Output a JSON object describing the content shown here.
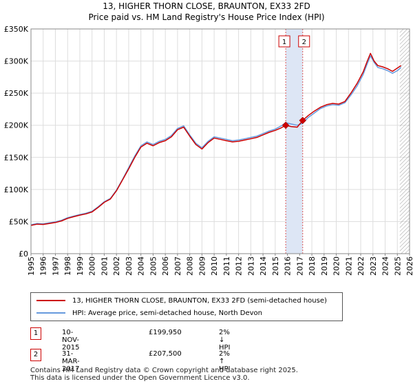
{
  "title_line1": "13, HIGHER THORN CLOSE, BRAUNTON, EX33 2FD",
  "title_line2": "Price paid vs. HM Land Registry's House Price Index (HPI)",
  "chart_data": {
    "type": "line",
    "xlim": [
      1995,
      2026
    ],
    "ylim": [
      0,
      350000
    ],
    "yticks": [
      0,
      50000,
      100000,
      150000,
      200000,
      250000,
      300000,
      350000
    ],
    "ytick_labels": [
      "£0",
      "£50K",
      "£100K",
      "£150K",
      "£200K",
      "£250K",
      "£300K",
      "£350K"
    ],
    "xticks": [
      1995,
      1996,
      1997,
      1998,
      1999,
      2000,
      2001,
      2002,
      2003,
      2004,
      2005,
      2006,
      2007,
      2008,
      2009,
      2010,
      2011,
      2012,
      2013,
      2014,
      2015,
      2016,
      2017,
      2018,
      2019,
      2020,
      2021,
      2022,
      2023,
      2024,
      2025,
      2026
    ],
    "shaded_span": [
      2015.86,
      2017.25
    ],
    "hatched_from": 2025.2,
    "series": [
      {
        "name": "13, HIGHER THORN CLOSE, BRAUNTON, EX33 2FD (semi-detached house)",
        "color": "#cc0000",
        "x": [
          1995,
          1995.5,
          1996,
          1996.5,
          1997,
          1997.5,
          1998,
          1998.5,
          1999,
          1999.5,
          2000,
          2000.5,
          2001,
          2001.5,
          2002,
          2002.5,
          2003,
          2003.5,
          2004,
          2004.5,
          2005,
          2005.5,
          2006,
          2006.5,
          2007,
          2007.5,
          2008,
          2008.5,
          2009,
          2009.5,
          2010,
          2010.5,
          2011,
          2011.5,
          2012,
          2012.5,
          2013,
          2013.5,
          2014,
          2014.5,
          2015,
          2015.5,
          2015.86,
          2016.3,
          2016.8,
          2017.25,
          2017.7,
          2018.2,
          2018.7,
          2019.2,
          2019.7,
          2020.2,
          2020.7,
          2021.2,
          2021.7,
          2022.2,
          2022.5,
          2022.8,
          2023.1,
          2023.4,
          2023.8,
          2024.2,
          2024.6,
          2025.0,
          2025.3
        ],
        "y": [
          44000,
          46000,
          45500,
          47000,
          48500,
          51000,
          55000,
          57500,
          60000,
          62000,
          65000,
          72000,
          80000,
          85000,
          98000,
          115000,
          132000,
          150000,
          166000,
          172000,
          168000,
          173000,
          176000,
          182000,
          193000,
          197000,
          183000,
          170000,
          163000,
          173000,
          180000,
          178000,
          176000,
          174000,
          175000,
          177000,
          179000,
          181000,
          185000,
          189000,
          192000,
          196000,
          199950,
          198000,
          197000,
          207500,
          215000,
          222000,
          228000,
          232000,
          234000,
          233000,
          237000,
          250000,
          265000,
          283000,
          298000,
          312000,
          300000,
          293000,
          291000,
          288000,
          284000,
          289000,
          293000
        ]
      },
      {
        "name": "HPI: Average price, semi-detached house, North Devon",
        "color": "#6699dd",
        "x": [
          1995,
          1995.5,
          1996,
          1996.5,
          1997,
          1997.5,
          1998,
          1998.5,
          1999,
          1999.5,
          2000,
          2000.5,
          2001,
          2001.5,
          2002,
          2002.5,
          2003,
          2003.5,
          2004,
          2004.5,
          2005,
          2005.5,
          2006,
          2006.5,
          2007,
          2007.5,
          2008,
          2008.5,
          2009,
          2009.5,
          2010,
          2010.5,
          2011,
          2011.5,
          2012,
          2012.5,
          2013,
          2013.5,
          2014,
          2014.5,
          2015,
          2015.5,
          2015.86,
          2016.3,
          2016.8,
          2017.25,
          2017.7,
          2018.2,
          2018.7,
          2019.2,
          2019.7,
          2020.2,
          2020.7,
          2021.2,
          2021.7,
          2022.2,
          2022.5,
          2022.8,
          2023.1,
          2023.4,
          2023.8,
          2024.2,
          2024.6,
          2025.0,
          2025.3
        ],
        "y": [
          45000,
          47000,
          46500,
          48000,
          49500,
          52000,
          56000,
          58500,
          61000,
          63000,
          66000,
          73000,
          81000,
          86000,
          99000,
          116000,
          134000,
          152000,
          168000,
          174000,
          170000,
          175000,
          178000,
          184000,
          195000,
          199000,
          185000,
          172000,
          165000,
          175000,
          182000,
          180000,
          178000,
          176000,
          177000,
          179000,
          181000,
          183000,
          187000,
          191000,
          194000,
          199000,
          204000,
          202000,
          200000,
          203000,
          212000,
          219000,
          226000,
          230000,
          232000,
          231000,
          235000,
          247000,
          261000,
          279000,
          294000,
          308000,
          298000,
          290000,
          288000,
          285000,
          281000,
          285000,
          290000
        ]
      }
    ],
    "sales": [
      {
        "label": "1",
        "x": 2015.86,
        "y": 199950
      },
      {
        "label": "2",
        "x": 2017.25,
        "y": 207500
      }
    ]
  },
  "legend": {
    "property": "13, HIGHER THORN CLOSE, BRAUNTON, EX33 2FD (semi-detached house)",
    "hpi": "HPI: Average price, semi-detached house, North Devon"
  },
  "sales_table": [
    {
      "num": "1",
      "date": "10-NOV-2015",
      "price": "£199,950",
      "hpi": "2% ↓ HPI"
    },
    {
      "num": "2",
      "date": "31-MAR-2017",
      "price": "£207,500",
      "hpi": "2% ↑ HPI"
    }
  ],
  "footer_line1": "Contains HM Land Registry data © Crown copyright and database right 2025.",
  "footer_line2": "This data is licensed under the Open Government Licence v3.0.",
  "colors": {
    "property": "#cc0000",
    "hpi": "#6699dd",
    "span": "#dde6f5"
  }
}
